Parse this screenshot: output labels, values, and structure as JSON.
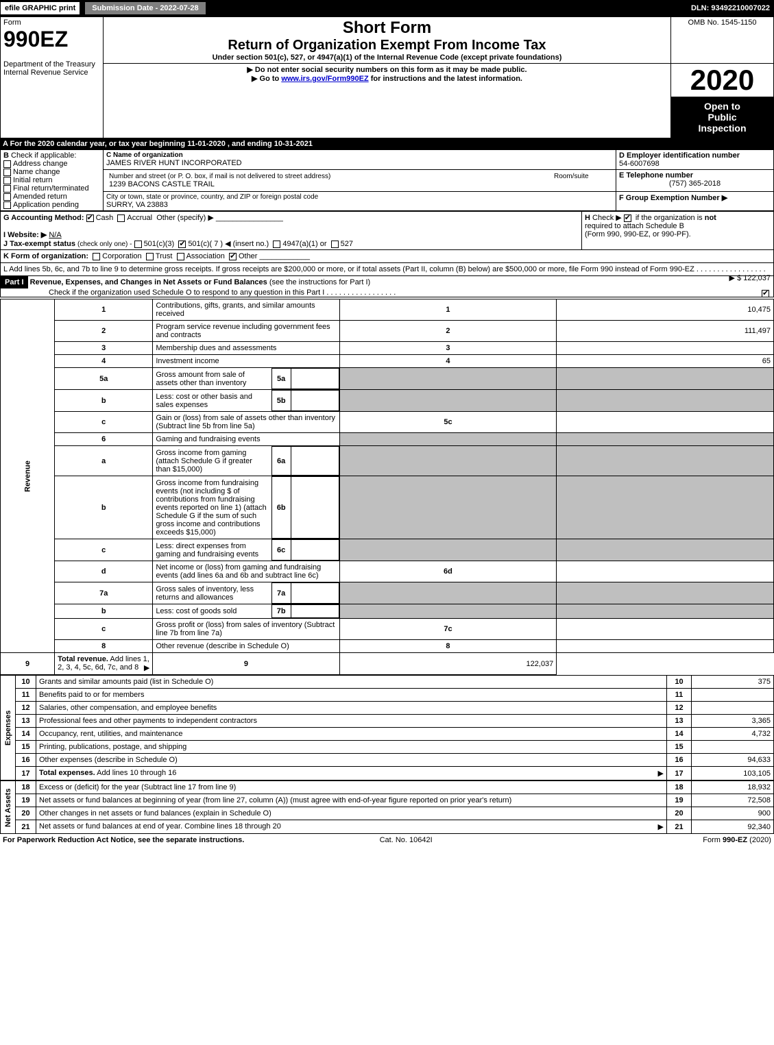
{
  "topbar": {
    "efile": "efile GRAPHIC print",
    "subdate": "Submission Date - 2022-07-28",
    "dln": "DLN: 93492210007022"
  },
  "header": {
    "form_label": "Form",
    "form_no": "990EZ",
    "dept1": "Department of the Treasury",
    "dept2": "Internal Revenue Service",
    "shortform": "Short Form",
    "title": "Return of Organization Exempt From Income Tax",
    "subtitle": "Under section 501(c), 527, or 4947(a)(1) of the Internal Revenue Code (except private foundations)",
    "warn": "▶ Do not enter social security numbers on this form as it may be made public.",
    "goto_pre": "▶ Go to ",
    "goto_link": "www.irs.gov/Form990EZ",
    "goto_post": " for instructions and the latest information.",
    "omb": "OMB No. 1545-1150",
    "year": "2020",
    "open1": "Open to",
    "open2": "Public",
    "open3": "Inspection"
  },
  "A": {
    "text": "A For the 2020 calendar year, or tax year beginning 11-01-2020 , and ending 10-31-2021"
  },
  "B": {
    "label": "B",
    "text": "Check if applicable:",
    "opts": [
      "Address change",
      "Name change",
      "Initial return",
      "Final return/terminated",
      "Amended return",
      "Application pending"
    ]
  },
  "C": {
    "name_label": "C Name of organization",
    "name": "JAMES RIVER HUNT INCORPORATED",
    "addr_label": "Number and street (or P. O. box, if mail is not delivered to street address)",
    "addr": "1239 BACONS CASTLE TRAIL",
    "room_label": "Room/suite",
    "city_label": "City or town, state or province, country, and ZIP or foreign postal code",
    "city": "SURRY, VA  23883"
  },
  "D": {
    "label": "D Employer identification number",
    "value": "54-6007698"
  },
  "E": {
    "label": "E Telephone number",
    "value": "(757) 365-2018"
  },
  "F": {
    "label": "F Group Exemption Number  ▶"
  },
  "G": {
    "label": "G Accounting Method:",
    "cash": "Cash",
    "accrual": "Accrual",
    "other": "Other (specify) ▶"
  },
  "H": {
    "label": "H",
    "text1": "Check ▶",
    "text2": "if the organization is ",
    "not": "not",
    "text3": "required to attach Schedule B",
    "text4": "(Form 990, 990-EZ, or 990-PF)."
  },
  "I": {
    "label": "I Website: ▶",
    "value": "N/A"
  },
  "J": {
    "label": "J Tax-exempt status",
    "small": "(check only one) -",
    "o1": "501(c)(3)",
    "o2": "501(c)( 7 ) ◀ (insert no.)",
    "o3": "4947(a)(1) or",
    "o4": "527"
  },
  "K": {
    "label": "K Form of organization:",
    "o1": "Corporation",
    "o2": "Trust",
    "o3": "Association",
    "o4": "Other"
  },
  "L": {
    "text": "L Add lines 5b, 6c, and 7b to line 9 to determine gross receipts. If gross receipts are $200,000 or more, or if total assets (Part II, column (B) below) are $500,000 or more, file Form 990 instead of Form 990-EZ",
    "amount": "▶ $ 122,037"
  },
  "part1": {
    "label": "Part I",
    "title": "Revenue, Expenses, and Changes in Net Assets or Fund Balances",
    "title2": "(see the instructions for Part I)",
    "check_line": "Check if the organization used Schedule O to respond to any question in this Part I"
  },
  "sections": {
    "revenue": "Revenue",
    "expenses": "Expenses",
    "netassets": "Net Assets"
  },
  "lines": [
    {
      "n": "1",
      "label": "Contributions, gifts, grants, and similar amounts received",
      "box": "1",
      "amt": "10,475"
    },
    {
      "n": "2",
      "label": "Program service revenue including government fees and contracts",
      "box": "2",
      "amt": "111,497"
    },
    {
      "n": "3",
      "label": "Membership dues and assessments",
      "box": "3",
      "amt": ""
    },
    {
      "n": "4",
      "label": "Investment income",
      "box": "4",
      "amt": "65"
    },
    {
      "n": "5a",
      "label": "Gross amount from sale of assets other than inventory",
      "sub": "5a"
    },
    {
      "n": "b",
      "label": "Less: cost or other basis and sales expenses",
      "sub": "5b"
    },
    {
      "n": "c",
      "label": "Gain or (loss) from sale of assets other than inventory (Subtract line 5b from line 5a)",
      "box": "5c",
      "amt": ""
    },
    {
      "n": "6",
      "label": "Gaming and fundraising events"
    },
    {
      "n": "a",
      "label": "Gross income from gaming (attach Schedule G if greater than $15,000)",
      "sub": "6a"
    },
    {
      "n": "b",
      "label": "Gross income from fundraising events (not including $            of contributions from fundraising events reported on line 1) (attach Schedule G if the sum of such gross income and contributions exceeds $15,000)",
      "sub": "6b"
    },
    {
      "n": "c",
      "label": "Less: direct expenses from gaming and fundraising events",
      "sub": "6c"
    },
    {
      "n": "d",
      "label": "Net income or (loss) from gaming and fundraising events (add lines 6a and 6b and subtract line 6c)",
      "box": "6d",
      "amt": ""
    },
    {
      "n": "7a",
      "label": "Gross sales of inventory, less returns and allowances",
      "sub": "7a"
    },
    {
      "n": "b",
      "label": "Less: cost of goods sold",
      "sub": "7b"
    },
    {
      "n": "c",
      "label": "Gross profit or (loss) from sales of inventory (Subtract line 7b from line 7a)",
      "box": "7c",
      "amt": ""
    },
    {
      "n": "8",
      "label": "Other revenue (describe in Schedule O)",
      "box": "8",
      "amt": ""
    },
    {
      "n": "9",
      "label": "Total revenue. Add lines 1, 2, 3, 4, 5c, 6d, 7c, and 8",
      "box": "9",
      "amt": "122,037",
      "bold": true,
      "arrow": true
    }
  ],
  "exp_lines": [
    {
      "n": "10",
      "label": "Grants and similar amounts paid (list in Schedule O)",
      "box": "10",
      "amt": "375"
    },
    {
      "n": "11",
      "label": "Benefits paid to or for members",
      "box": "11",
      "amt": ""
    },
    {
      "n": "12",
      "label": "Salaries, other compensation, and employee benefits",
      "box": "12",
      "amt": ""
    },
    {
      "n": "13",
      "label": "Professional fees and other payments to independent contractors",
      "box": "13",
      "amt": "3,365"
    },
    {
      "n": "14",
      "label": "Occupancy, rent, utilities, and maintenance",
      "box": "14",
      "amt": "4,732"
    },
    {
      "n": "15",
      "label": "Printing, publications, postage, and shipping",
      "box": "15",
      "amt": ""
    },
    {
      "n": "16",
      "label": "Other expenses (describe in Schedule O)",
      "box": "16",
      "amt": "94,633"
    },
    {
      "n": "17",
      "label": "Total expenses. Add lines 10 through 16",
      "box": "17",
      "amt": "103,105",
      "bold": true,
      "arrow": true
    }
  ],
  "na_lines": [
    {
      "n": "18",
      "label": "Excess or (deficit) for the year (Subtract line 17 from line 9)",
      "box": "18",
      "amt": "18,932"
    },
    {
      "n": "19",
      "label": "Net assets or fund balances at beginning of year (from line 27, column (A)) (must agree with end-of-year figure reported on prior year's return)",
      "box": "19",
      "amt": "72,508"
    },
    {
      "n": "20",
      "label": "Other changes in net assets or fund balances (explain in Schedule O)",
      "box": "20",
      "amt": "900"
    },
    {
      "n": "21",
      "label": "Net assets or fund balances at end of year. Combine lines 18 through 20",
      "box": "21",
      "amt": "92,340",
      "arrow": true
    }
  ],
  "footer": {
    "left": "For Paperwork Reduction Act Notice, see the separate instructions.",
    "mid": "Cat. No. 10642I",
    "right_pre": "Form ",
    "right_bold": "990-EZ",
    "right_post": " (2020)"
  }
}
